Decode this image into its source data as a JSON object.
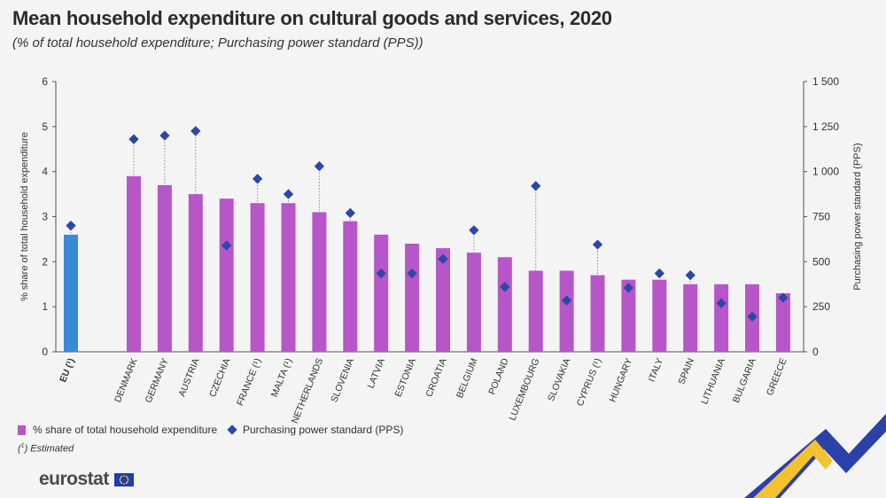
{
  "title": "Mean household expenditure on cultural goods and services, 2020",
  "subtitle": "(% of total household expenditure; Purchasing power standard (PPS))",
  "footnote": {
    "mark": "1",
    "text": " Estimated",
    "paren_open": "(",
    "paren_close": ")"
  },
  "logo": {
    "text": "eurostat"
  },
  "colors": {
    "bar": "#b656c8",
    "eu_bar": "#3a89d9",
    "diamond": "#2b47a8",
    "background": "#f4f4f4"
  },
  "chart_data": {
    "type": "bar",
    "title": "Mean household expenditure on cultural goods and services, 2020",
    "categories": [
      "EU (¹)",
      "DENMARK",
      "GERMANY",
      "AUSTRIA",
      "CZECHIA",
      "FRANCE (¹)",
      "MALTA (¹)",
      "NETHERLANDS",
      "SLOVENIA",
      "LATVIA",
      "ESTONIA",
      "CROATIA",
      "BELGIUM",
      "POLAND",
      "LUXEMBOURG",
      "SLOVAKIA",
      "CYPRUS (¹)",
      "HUNGARY",
      "ITALY",
      "SPAIN",
      "LITHUANIA",
      "BULGARIA",
      "GREECE"
    ],
    "series": [
      {
        "name": "% share of total household expenditure",
        "axis": "left",
        "values": [
          2.6,
          3.9,
          3.7,
          3.5,
          3.4,
          3.3,
          3.3,
          3.1,
          2.9,
          2.6,
          2.4,
          2.3,
          2.2,
          2.1,
          1.8,
          1.8,
          1.7,
          1.6,
          1.6,
          1.5,
          1.5,
          1.5,
          1.3
        ]
      },
      {
        "name": "Purchasing power standard (PPS)",
        "axis": "right",
        "marker": "diamond",
        "values": [
          700,
          1180,
          1200,
          1225,
          590,
          960,
          875,
          1030,
          770,
          435,
          435,
          515,
          675,
          360,
          920,
          285,
          595,
          355,
          435,
          425,
          270,
          195,
          300
        ]
      }
    ],
    "ylabel": "% share of total household expenditure",
    "ylabel_right": "Purchasing power standard (PPS)",
    "ylim": [
      0,
      6
    ],
    "ylim_right": [
      0,
      1500
    ],
    "yticks": [
      0,
      1,
      2,
      3,
      4,
      5,
      6
    ],
    "yticks_right": [
      "0",
      "250",
      "500",
      "750",
      "1 000",
      "1 250",
      "1 500"
    ],
    "legend_position": "bottom-left",
    "grid": false
  }
}
